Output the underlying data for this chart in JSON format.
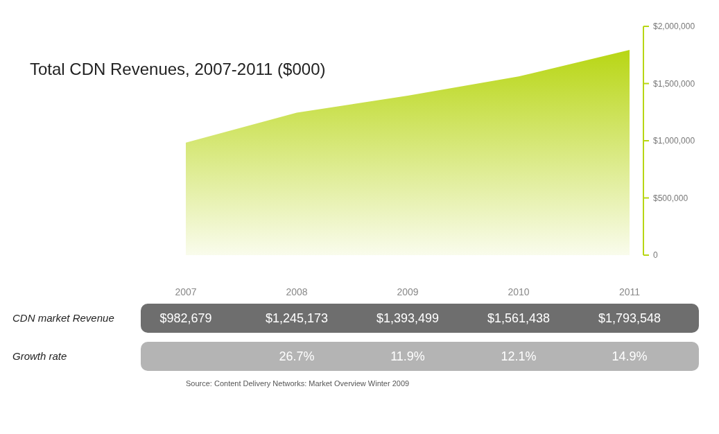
{
  "chart_data": {
    "type": "area",
    "title": "Total CDN Revenues, 2007-2011 ($000)",
    "categories": [
      "2007",
      "2008",
      "2009",
      "2010",
      "2011"
    ],
    "values": [
      982679,
      1245173,
      1393499,
      1561438,
      1793548
    ],
    "value_labels": [
      "$982,679",
      "$1,245,173",
      "$1,393,499",
      "$1,561,438",
      "$1,793,548"
    ],
    "color": "#b8d614",
    "ylim": [
      0,
      2000000
    ],
    "yticks": [
      {
        "value": 0,
        "label": "0"
      },
      {
        "value": 500000,
        "label": "$500,000"
      },
      {
        "value": 1000000,
        "label": "$1,000,000"
      },
      {
        "value": 1500000,
        "label": "$1,500,000"
      },
      {
        "value": 2000000,
        "label": "$2,000,000"
      }
    ],
    "annotations": [
      "CDN market Revenue",
      "Growth rate",
      "26.7%",
      "11.9%",
      "12.1%",
      "14.9%",
      "Source: Content Delivery Networks: Market Overview Winter 2009"
    ]
  }
}
